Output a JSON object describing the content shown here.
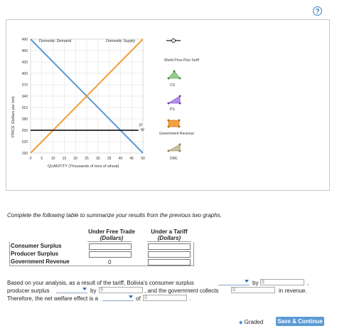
{
  "help_label": "?",
  "graph": {
    "y_axis_label": "PRICE (Dollars per ton)",
    "x_axis_label": "QUANTITY (Thousands of tons of wheat)",
    "y_ticks": [
      "490",
      "460",
      "430",
      "400",
      "370",
      "340",
      "310",
      "280",
      "250",
      "220",
      "190"
    ],
    "x_ticks": [
      "0",
      "5",
      "10",
      "15",
      "20",
      "25",
      "30",
      "35",
      "40",
      "45",
      "50"
    ],
    "demand_label": "Domestic Demand",
    "supply_label": "Domestic Supply",
    "pw_label": "P",
    "pw_sub": "W",
    "colors": {
      "demand": "#5b9bd5",
      "supply": "#f39c3c",
      "world_price": "#222222",
      "cs": "#8fd18a",
      "ps": "#b58cf0",
      "gov": "#f5a040",
      "dwl": "#c8c39a"
    }
  },
  "legend": {
    "items": [
      {
        "label": "World Price Plus Tariff",
        "icon": "line-marker-icon"
      },
      {
        "label": "CS",
        "icon": "cs-triangle-icon"
      },
      {
        "label": "PS",
        "icon": "ps-triangle-icon"
      },
      {
        "label": "Government Revenue",
        "icon": "gov-rect-icon"
      },
      {
        "label": "DWL",
        "icon": "dwl-triangle-icon"
      }
    ]
  },
  "instruction": "Complete the following table to summarize your results from the previous two graphs.",
  "table": {
    "col1_title": "Under Free Trade",
    "col1_sub": "(Dollars)",
    "col2_title": "Under a Tariff",
    "col2_sub": "(Dollars)",
    "rows": [
      {
        "label": "Consumer Surplus",
        "free": "",
        "tariff": ""
      },
      {
        "label": "Producer Surplus",
        "free": "",
        "tariff": ""
      },
      {
        "label": "Government Revenue",
        "free": "0",
        "tariff": ""
      }
    ]
  },
  "analysis": {
    "line1_a": "Based on your analysis, as a result of the tariff, Bolivia's consumer surplus",
    "line1_b": "by",
    "line2_a": "producer surplus",
    "line2_b": "by",
    "line2_c": ", and the government collects",
    "line2_d": "in revenue.",
    "line3_a": "Therefore, the net welfare effect is a",
    "line3_b": "of",
    "dollar_placeholder": "$",
    "comma": ",",
    "period": "."
  },
  "footer": {
    "graded_label": "Graded",
    "save_label": "Save & Continue"
  }
}
